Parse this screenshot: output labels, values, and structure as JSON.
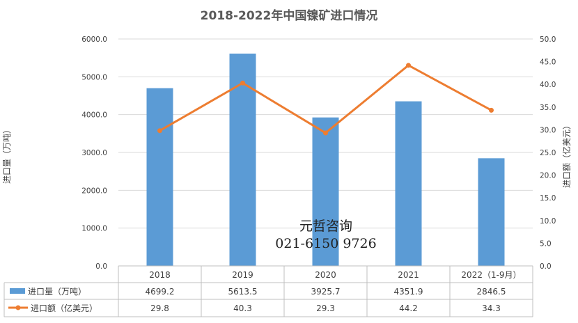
{
  "chart_data": {
    "type": "bar",
    "title": "2018-2022年中国镍矿进口情况",
    "categories": [
      "2018",
      "2019",
      "2020",
      "2021",
      "2022（1-9月）"
    ],
    "series": [
      {
        "name": "进口量（万吨）",
        "type": "bar",
        "axis": "left",
        "color": "#5B9BD5",
        "values": [
          4699.2,
          5613.5,
          3925.7,
          4351.9,
          2846.5
        ]
      },
      {
        "name": "进口额（亿美元）",
        "type": "line",
        "axis": "right",
        "color": "#ED7D31",
        "values": [
          29.8,
          40.3,
          29.3,
          44.2,
          34.3
        ]
      }
    ],
    "ylabel": "进口量（万吨）",
    "y2label": "进口额（亿美元）",
    "ylim": [
      0,
      6000
    ],
    "y2lim": [
      0,
      50
    ],
    "yticks": [
      "0.0",
      "1000.0",
      "2000.0",
      "3000.0",
      "4000.0",
      "5000.0",
      "6000.0"
    ],
    "y2ticks": [
      "0.0",
      "5.0",
      "10.0",
      "15.0",
      "20.0",
      "25.0",
      "30.0",
      "35.0",
      "40.0",
      "45.0",
      "50.0"
    ],
    "table_values": [
      [
        "4699.2",
        "5613.5",
        "3925.7",
        "4351.9",
        "2846.5"
      ],
      [
        "29.8",
        "40.3",
        "29.3",
        "44.2",
        "34.3"
      ]
    ],
    "grid": true,
    "legend": "data table"
  },
  "watermark": {
    "line1": "元哲咨询",
    "line2": "021-6150 9726"
  }
}
